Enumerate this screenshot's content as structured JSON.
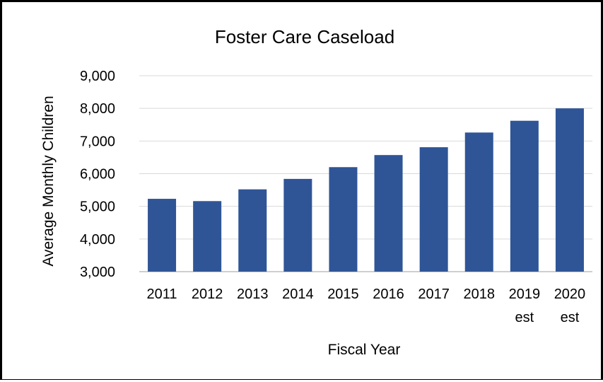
{
  "chart_data": {
    "type": "bar",
    "title": "Foster Care Caseload",
    "xlabel": "Fiscal Year",
    "ylabel": "Average Monthly Children",
    "categories": [
      {
        "line1": "2011",
        "line2": ""
      },
      {
        "line1": "2012",
        "line2": ""
      },
      {
        "line1": "2013",
        "line2": ""
      },
      {
        "line1": "2014",
        "line2": ""
      },
      {
        "line1": "2015",
        "line2": ""
      },
      {
        "line1": "2016",
        "line2": ""
      },
      {
        "line1": "2017",
        "line2": ""
      },
      {
        "line1": "2018",
        "line2": ""
      },
      {
        "line1": "2019",
        "line2": "est"
      },
      {
        "line1": "2020",
        "line2": "est"
      }
    ],
    "values": [
      5230,
      5160,
      5520,
      5840,
      6200,
      6570,
      6810,
      7260,
      7620,
      8000
    ],
    "ylim": [
      3000,
      9000
    ],
    "yticks": [
      3000,
      4000,
      5000,
      6000,
      7000,
      8000,
      9000
    ],
    "ytick_labels": [
      "3,000",
      "4,000",
      "5,000",
      "6,000",
      "7,000",
      "8,000",
      "9,000"
    ],
    "grid": true,
    "legend": "none",
    "bar_color": "#2f5597"
  }
}
